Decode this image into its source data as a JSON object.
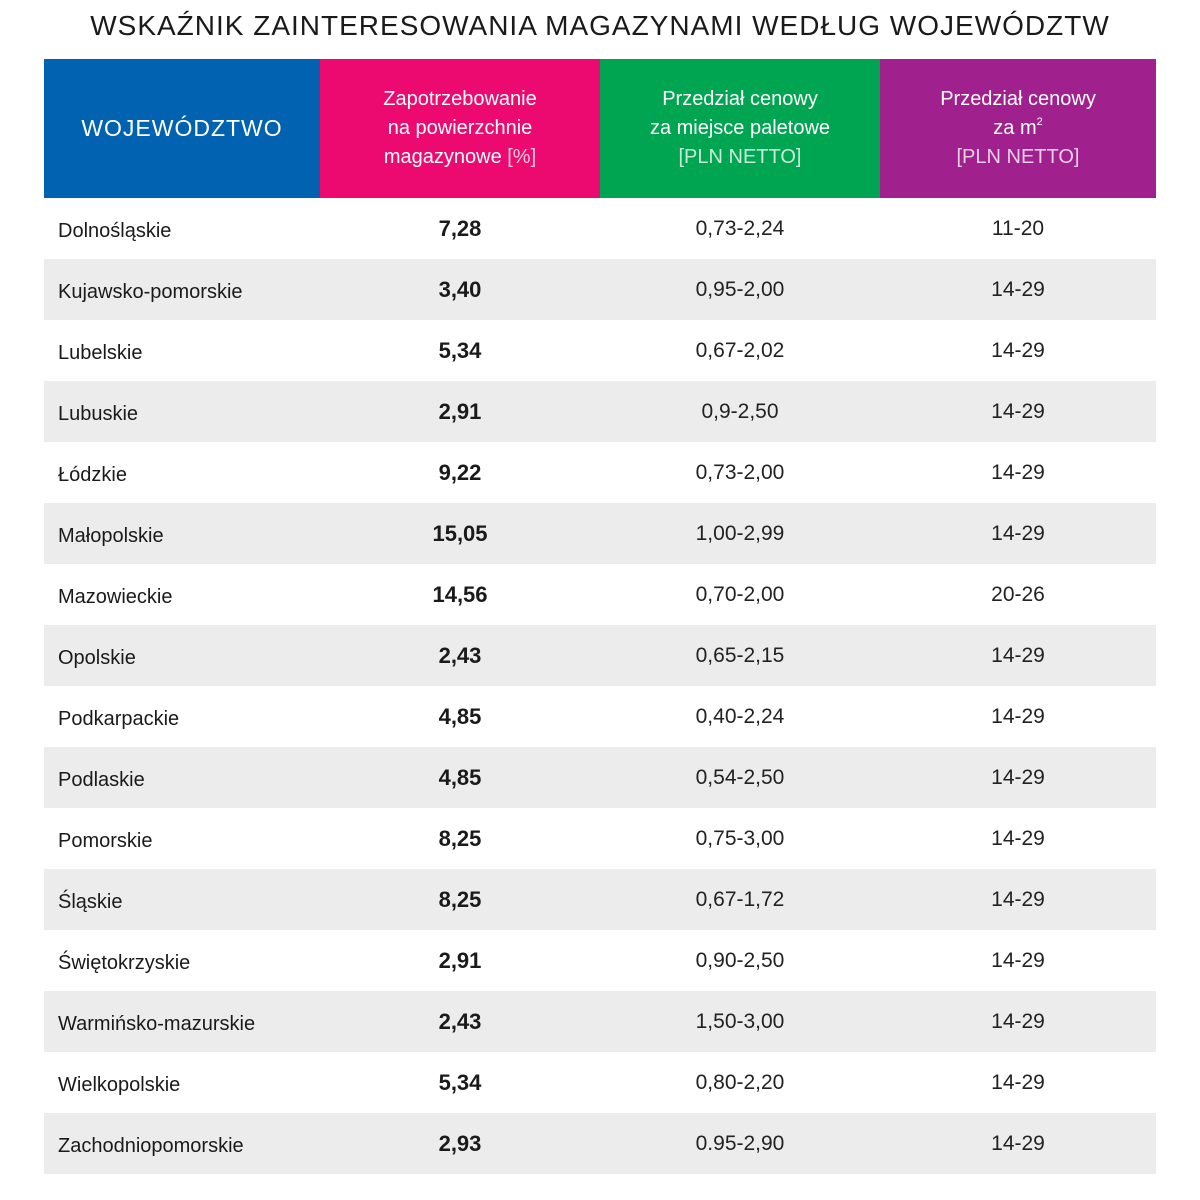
{
  "title": "WSKAŹNIK ZAINTERESOWANIA MAGAZYNAMI WEDŁUG WOJEWÓDZTW",
  "colors": {
    "col1": "#0062b0",
    "col2": "#ec0a70",
    "col3": "#00a551",
    "col4": "#a0218e",
    "row_alt": "#ececec"
  },
  "header": {
    "col1": "WOJEWÓDZTWO",
    "col2_line1": "Zapotrzebowanie",
    "col2_line2": "na powierzchnie",
    "col2_line3": "magazynowe",
    "col2_unit": "[%]",
    "col3_line1": "Przedział cenowy",
    "col3_line2": "za miejsce paletowe",
    "col3_unit": "[PLN NETTO]",
    "col4_line1": "Przedział cenowy",
    "col4_line2": "za m",
    "col4_sup": "2",
    "col4_unit": "[PLN NETTO]"
  },
  "chart_data": {
    "type": "table",
    "title": "WSKAŹNIK ZAINTERESOWANIA MAGAZYNAMI WEDŁUG WOJEWÓDZTW",
    "columns": [
      "WOJEWÓDZTWO",
      "Zapotrzebowanie na powierzchnie magazynowe [%]",
      "Przedział cenowy za miejsce paletowe [PLN NETTO]",
      "Przedział cenowy za m2 [PLN NETTO]"
    ],
    "rows": [
      {
        "region": "Dolnośląskie",
        "demand": "7,28",
        "pallet": "0,73-2,24",
        "sqm": "11-20"
      },
      {
        "region": "Kujawsko-pomorskie",
        "demand": "3,40",
        "pallet": "0,95-2,00",
        "sqm": "14-29"
      },
      {
        "region": "Lubelskie",
        "demand": "5,34",
        "pallet": "0,67-2,02",
        "sqm": "14-29"
      },
      {
        "region": "Lubuskie",
        "demand": "2,91",
        "pallet": "0,9-2,50",
        "sqm": "14-29"
      },
      {
        "region": "Łódzkie",
        "demand": "9,22",
        "pallet": "0,73-2,00",
        "sqm": "14-29"
      },
      {
        "region": "Małopolskie",
        "demand": "15,05",
        "pallet": "1,00-2,99",
        "sqm": "14-29"
      },
      {
        "region": "Mazowieckie",
        "demand": "14,56",
        "pallet": "0,70-2,00",
        "sqm": "20-26"
      },
      {
        "region": "Opolskie",
        "demand": "2,43",
        "pallet": "0,65-2,15",
        "sqm": "14-29"
      },
      {
        "region": "Podkarpackie",
        "demand": "4,85",
        "pallet": "0,40-2,24",
        "sqm": "14-29"
      },
      {
        "region": "Podlaskie",
        "demand": "4,85",
        "pallet": "0,54-2,50",
        "sqm": "14-29"
      },
      {
        "region": "Pomorskie",
        "demand": "8,25",
        "pallet": "0,75-3,00",
        "sqm": "14-29"
      },
      {
        "region": "Śląskie",
        "demand": "8,25",
        "pallet": "0,67-1,72",
        "sqm": "14-29"
      },
      {
        "region": "Świętokrzyskie",
        "demand": "2,91",
        "pallet": "0,90-2,50",
        "sqm": "14-29"
      },
      {
        "region": "Warmińsko-mazurskie",
        "demand": "2,43",
        "pallet": "1,50-3,00",
        "sqm": "14-29"
      },
      {
        "region": "Wielkopolskie",
        "demand": "5,34",
        "pallet": "0,80-2,20",
        "sqm": "14-29"
      },
      {
        "region": "Zachodniopomorskie",
        "demand": "2,93",
        "pallet": "0.95-2,90",
        "sqm": "14-29"
      }
    ]
  }
}
